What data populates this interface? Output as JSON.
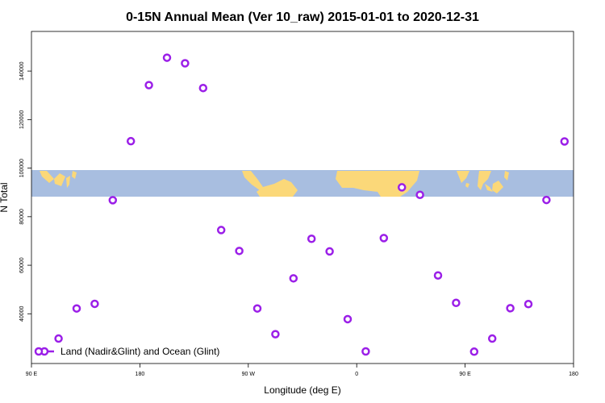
{
  "chart_data": {
    "type": "scatter",
    "title": "0-15N Annual Mean (Ver 10_raw)   2015-01-01 to 2020-12-31",
    "xlabel": "Longitude (deg E)",
    "ylabel": "N Total",
    "x_tick_labels": [
      "90 E",
      "180",
      "90 W",
      "0",
      "90 E",
      "180"
    ],
    "x_tick_values": [
      90,
      180,
      270,
      360,
      450,
      540
    ],
    "xlim": [
      90,
      540
    ],
    "y_tick_labels": [
      "40000",
      "60000",
      "80000",
      "100000",
      "120000",
      "140000"
    ],
    "y_tick_values": [
      40000,
      60000,
      80000,
      100000,
      120000,
      140000
    ],
    "ylim": [
      24500,
      152000
    ],
    "grid": false,
    "legend_position": "bottom-left",
    "series": [
      {
        "name": "Land (Nadir&Glint) and Ocean (Glint)",
        "color": "#9b1fe8",
        "x": [
          112.5,
          127.5,
          142.5,
          157.5,
          172.5,
          187.5,
          202.5,
          217.5,
          232.5,
          247.5,
          262.5,
          277.5,
          292.5,
          307.5,
          322.5,
          337.5,
          352.5,
          367.5,
          382.5,
          397.5,
          412.5,
          427.5,
          442.5,
          457.5,
          472.5,
          487.5,
          502.5,
          517.5,
          532.5
        ],
        "y": [
          29800,
          42200,
          44100,
          86800,
          111100,
          134200,
          145500,
          143200,
          133000,
          74500,
          65900,
          42200,
          31600,
          54600,
          70900,
          65700,
          37800,
          24500,
          71200,
          92100,
          89000,
          55800,
          44500,
          24400,
          29800,
          42300,
          44000,
          86900,
          111000
        ]
      }
    ],
    "map_band": {
      "ocean_color": "#a8bee0",
      "land_color": "#fbd879"
    }
  }
}
